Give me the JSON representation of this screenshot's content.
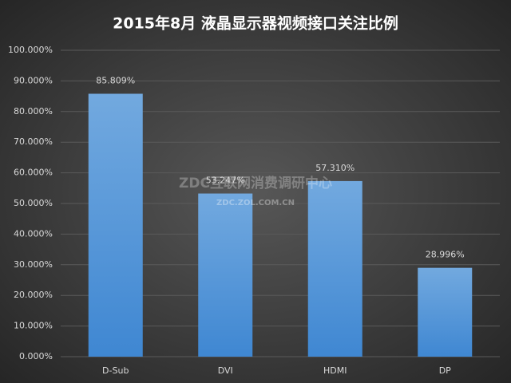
{
  "chart_data": {
    "type": "bar",
    "title": "2015年8月  液晶显示器视频接口关注比例",
    "categories": [
      "D-Sub",
      "DVI",
      "HDMI",
      "DP"
    ],
    "values": [
      85.809,
      53.247,
      57.31,
      28.996
    ],
    "value_labels": [
      "85.809%",
      "53.247%",
      "57.310%",
      "28.996%"
    ],
    "color": "#5b9bd5",
    "ylim": [
      0,
      100
    ],
    "yticks": [
      {
        "value": 0,
        "label": "0.000%"
      },
      {
        "value": 10,
        "label": "10.000%"
      },
      {
        "value": 20,
        "label": "20.000%"
      },
      {
        "value": 30,
        "label": "30.000%"
      },
      {
        "value": 40,
        "label": "40.000%"
      },
      {
        "value": 50,
        "label": "50.000%"
      },
      {
        "value": 60,
        "label": "60.000%"
      },
      {
        "value": 70,
        "label": "70.000%"
      },
      {
        "value": 80,
        "label": "80.000%"
      },
      {
        "value": 90,
        "label": "90.000%"
      },
      {
        "value": 100,
        "label": "100.000%"
      }
    ],
    "grid": true,
    "watermark": [
      "ZDC互联网消费调研中心",
      "ZDC.ZOL.COM.CN"
    ]
  }
}
